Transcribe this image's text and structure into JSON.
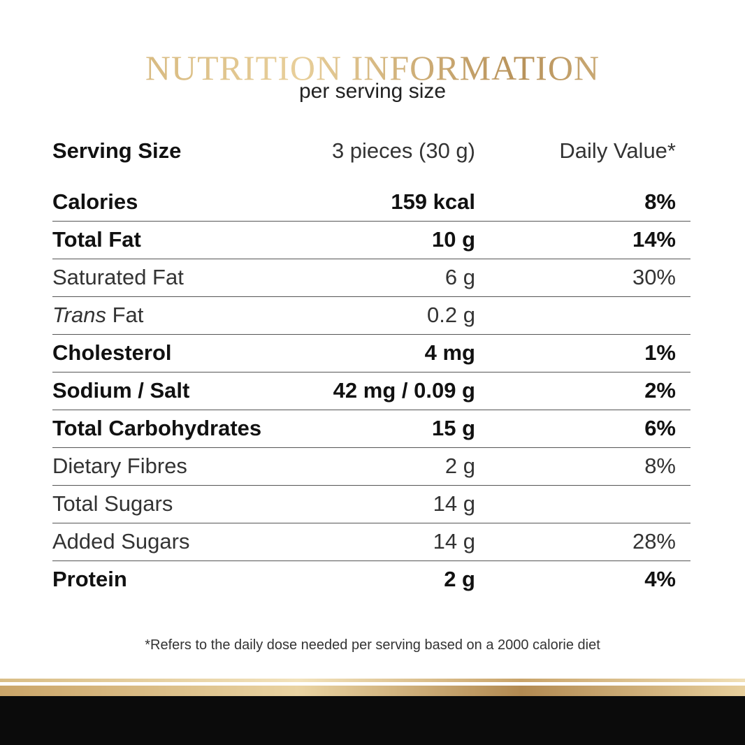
{
  "header": {
    "title": "NUTRITION INFORMATION",
    "subtitle": "per serving size"
  },
  "table": {
    "header": [
      "Serving Size",
      "3 pieces (30 g)",
      "Daily Value*"
    ],
    "rows": [
      [
        "Calories",
        "159 kcal",
        "8%"
      ],
      [
        "Total Fat",
        "10 g",
        "14%"
      ],
      [
        "Saturated Fat",
        "6 g",
        "30%"
      ],
      [
        [
          "Trans",
          "Fat"
        ],
        "0.2 g"
      ],
      [
        "Cholesterol",
        "4 mg",
        "1%"
      ],
      [
        "Sodium / Salt",
        "42 mg / 0.09 g",
        "2%"
      ],
      [
        "Total Carbohydrates",
        "15 g",
        "6%"
      ],
      [
        "Dietary Fibres",
        "2 g",
        "8%"
      ],
      [
        "Total Sugars",
        "14 g"
      ],
      [
        "Added Sugars",
        "14 g",
        "28%"
      ],
      [
        "Protein",
        "2 g",
        "4%"
      ]
    ]
  },
  "footnote": "*Refers to the daily dose needed per serving based on a 2000 calorie diet"
}
